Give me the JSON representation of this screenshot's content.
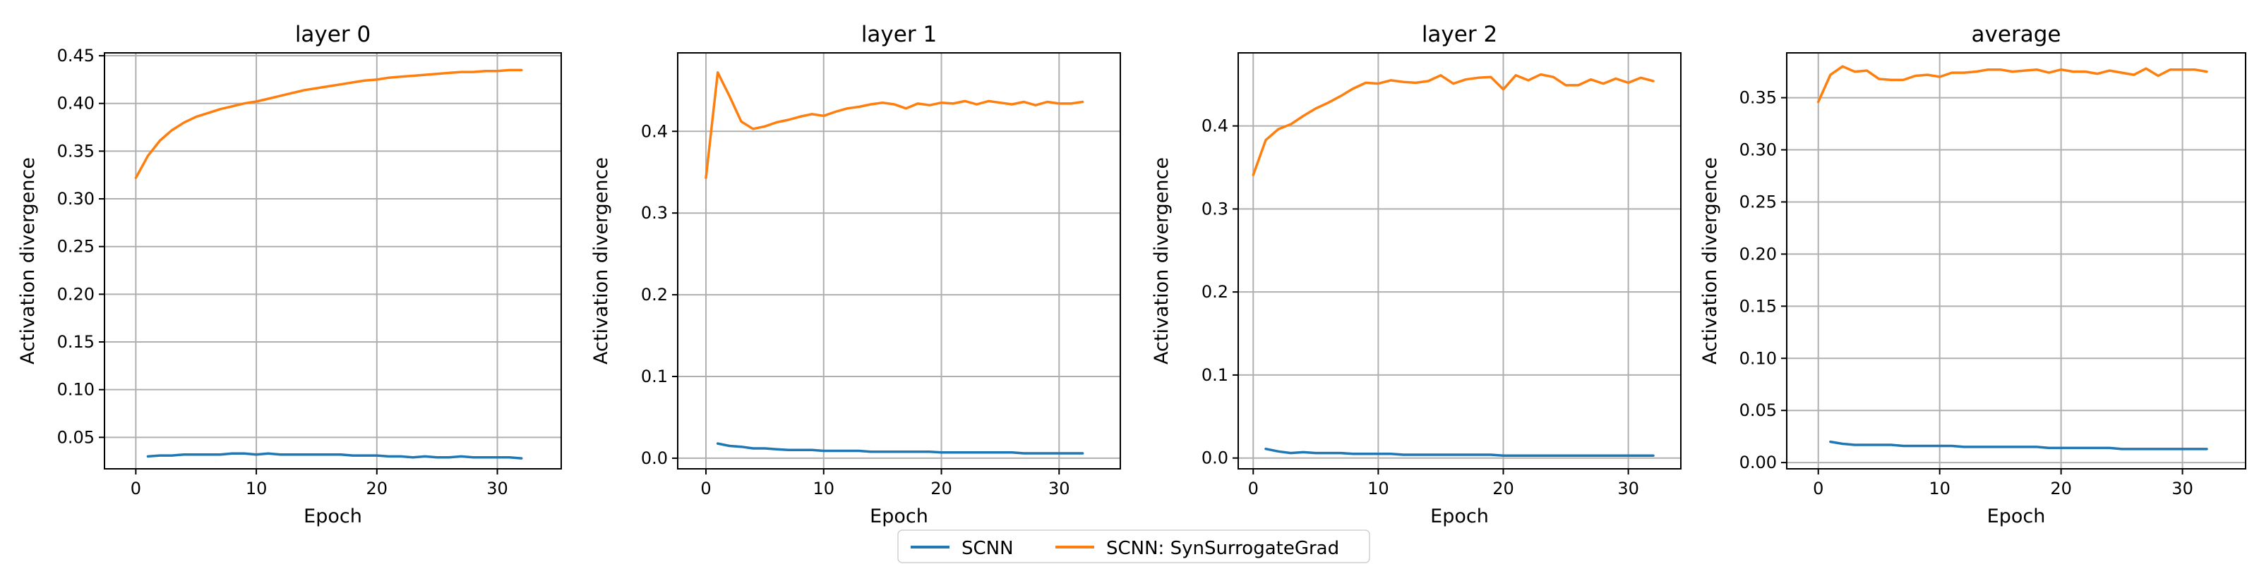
{
  "chart_data": [
    {
      "type": "line",
      "title": "layer 0",
      "xlabel": "Epoch",
      "ylabel": "Activation divergence",
      "xlim": [
        -2.6,
        35.3
      ],
      "ylim": [
        0.017,
        0.453
      ],
      "xticks": [
        0,
        10,
        20,
        30
      ],
      "yticks": [
        0.05,
        0.1,
        0.15,
        0.2,
        0.25,
        0.3,
        0.35,
        0.4,
        0.45
      ],
      "ytick_labels": [
        "0.05",
        "0.10",
        "0.15",
        "0.20",
        "0.25",
        "0.30",
        "0.35",
        "0.40",
        "0.45"
      ],
      "grid": true,
      "series": [
        {
          "name": "SCNN",
          "x": [
            1,
            2,
            3,
            4,
            5,
            6,
            7,
            8,
            9,
            10,
            11,
            12,
            13,
            14,
            15,
            16,
            17,
            18,
            19,
            20,
            21,
            22,
            23,
            24,
            25,
            26,
            27,
            28,
            29,
            30,
            31,
            32
          ],
          "y": [
            0.03,
            0.031,
            0.031,
            0.032,
            0.032,
            0.032,
            0.032,
            0.033,
            0.033,
            0.032,
            0.033,
            0.032,
            0.032,
            0.032,
            0.032,
            0.032,
            0.032,
            0.031,
            0.031,
            0.031,
            0.03,
            0.03,
            0.029,
            0.03,
            0.029,
            0.029,
            0.03,
            0.029,
            0.029,
            0.029,
            0.029,
            0.028
          ]
        },
        {
          "name": "SCNN: SynSurrogateGrad",
          "x": [
            0,
            1,
            2,
            3,
            4,
            5,
            6,
            7,
            8,
            9,
            10,
            11,
            12,
            13,
            14,
            15,
            16,
            17,
            18,
            19,
            20,
            21,
            22,
            23,
            24,
            25,
            26,
            27,
            28,
            29,
            30,
            31,
            32
          ],
          "y": [
            0.322,
            0.345,
            0.361,
            0.372,
            0.38,
            0.386,
            0.39,
            0.394,
            0.397,
            0.4,
            0.402,
            0.405,
            0.408,
            0.411,
            0.414,
            0.416,
            0.418,
            0.42,
            0.422,
            0.424,
            0.425,
            0.427,
            0.428,
            0.429,
            0.43,
            0.431,
            0.432,
            0.433,
            0.433,
            0.434,
            0.434,
            0.435,
            0.435
          ]
        }
      ]
    },
    {
      "type": "line",
      "title": "layer 1",
      "xlabel": "Epoch",
      "ylabel": "Activation divergence",
      "xlim": [
        -2.4,
        35.2
      ],
      "ylim": [
        -0.013,
        0.496
      ],
      "xticks": [
        0,
        10,
        20,
        30
      ],
      "yticks": [
        0.0,
        0.1,
        0.2,
        0.3,
        0.4
      ],
      "ytick_labels": [
        "0.0",
        "0.1",
        "0.2",
        "0.3",
        "0.4"
      ],
      "grid": true,
      "series": [
        {
          "name": "SCNN",
          "x": [
            1,
            2,
            3,
            4,
            5,
            6,
            7,
            8,
            9,
            10,
            11,
            12,
            13,
            14,
            15,
            16,
            17,
            18,
            19,
            20,
            21,
            22,
            23,
            24,
            25,
            26,
            27,
            28,
            29,
            30,
            31,
            32
          ],
          "y": [
            0.018,
            0.015,
            0.014,
            0.012,
            0.012,
            0.011,
            0.01,
            0.01,
            0.01,
            0.009,
            0.009,
            0.009,
            0.009,
            0.008,
            0.008,
            0.008,
            0.008,
            0.008,
            0.008,
            0.007,
            0.007,
            0.007,
            0.007,
            0.007,
            0.007,
            0.007,
            0.006,
            0.006,
            0.006,
            0.006,
            0.006,
            0.006
          ]
        },
        {
          "name": "SCNN: SynSurrogateGrad",
          "x": [
            0,
            1,
            2,
            3,
            4,
            5,
            6,
            7,
            8,
            9,
            10,
            11,
            12,
            13,
            14,
            15,
            16,
            17,
            18,
            19,
            20,
            21,
            22,
            23,
            24,
            25,
            26,
            27,
            28,
            29,
            30,
            31,
            32
          ],
          "y": [
            0.343,
            0.472,
            0.443,
            0.412,
            0.403,
            0.406,
            0.411,
            0.414,
            0.418,
            0.421,
            0.419,
            0.424,
            0.428,
            0.43,
            0.433,
            0.435,
            0.433,
            0.428,
            0.434,
            0.432,
            0.435,
            0.434,
            0.437,
            0.433,
            0.437,
            0.435,
            0.433,
            0.436,
            0.432,
            0.436,
            0.434,
            0.434,
            0.436
          ]
        }
      ]
    },
    {
      "type": "line",
      "title": "layer 2",
      "xlabel": "Epoch",
      "ylabel": "Activation divergence",
      "xlim": [
        -1.2,
        34.2
      ],
      "ylim": [
        -0.013,
        0.488
      ],
      "xticks": [
        0,
        10,
        20,
        30
      ],
      "yticks": [
        0.0,
        0.1,
        0.2,
        0.3,
        0.4
      ],
      "ytick_labels": [
        "0.0",
        "0.1",
        "0.2",
        "0.3",
        "0.4"
      ],
      "grid": true,
      "series": [
        {
          "name": "SCNN",
          "x": [
            1,
            2,
            3,
            4,
            5,
            6,
            7,
            8,
            9,
            10,
            11,
            12,
            13,
            14,
            15,
            16,
            17,
            18,
            19,
            20,
            21,
            22,
            23,
            24,
            25,
            26,
            27,
            28,
            29,
            30,
            31,
            32
          ],
          "y": [
            0.011,
            0.008,
            0.006,
            0.007,
            0.006,
            0.006,
            0.006,
            0.005,
            0.005,
            0.005,
            0.005,
            0.004,
            0.004,
            0.004,
            0.004,
            0.004,
            0.004,
            0.004,
            0.004,
            0.003,
            0.003,
            0.003,
            0.003,
            0.003,
            0.003,
            0.003,
            0.003,
            0.003,
            0.003,
            0.003,
            0.003,
            0.003
          ]
        },
        {
          "name": "SCNN: SynSurrogateGrad",
          "x": [
            0,
            1,
            2,
            3,
            4,
            5,
            6,
            7,
            8,
            9,
            10,
            11,
            12,
            13,
            14,
            15,
            16,
            17,
            18,
            19,
            20,
            21,
            22,
            23,
            24,
            25,
            26,
            27,
            28,
            29,
            30,
            31,
            32
          ],
          "y": [
            0.341,
            0.383,
            0.396,
            0.402,
            0.412,
            0.421,
            0.428,
            0.436,
            0.445,
            0.452,
            0.451,
            0.455,
            0.453,
            0.452,
            0.454,
            0.461,
            0.451,
            0.456,
            0.458,
            0.459,
            0.444,
            0.461,
            0.455,
            0.462,
            0.459,
            0.449,
            0.449,
            0.456,
            0.451,
            0.457,
            0.452,
            0.458,
            0.454
          ]
        }
      ]
    },
    {
      "type": "line",
      "title": "average",
      "xlabel": "Epoch",
      "ylabel": "Activation divergence",
      "xlim": [
        -2.6,
        35.2
      ],
      "ylim": [
        -0.006,
        0.393
      ],
      "xticks": [
        0,
        10,
        20,
        30
      ],
      "yticks": [
        0.0,
        0.05,
        0.1,
        0.15,
        0.2,
        0.25,
        0.3,
        0.35
      ],
      "ytick_labels": [
        "0.00",
        "0.05",
        "0.10",
        "0.15",
        "0.20",
        "0.25",
        "0.30",
        "0.35"
      ],
      "grid": true,
      "series": [
        {
          "name": "SCNN",
          "x": [
            1,
            2,
            3,
            4,
            5,
            6,
            7,
            8,
            9,
            10,
            11,
            12,
            13,
            14,
            15,
            16,
            17,
            18,
            19,
            20,
            21,
            22,
            23,
            24,
            25,
            26,
            27,
            28,
            29,
            30,
            31,
            32
          ],
          "y": [
            0.02,
            0.018,
            0.017,
            0.017,
            0.017,
            0.017,
            0.016,
            0.016,
            0.016,
            0.016,
            0.016,
            0.015,
            0.015,
            0.015,
            0.015,
            0.015,
            0.015,
            0.015,
            0.014,
            0.014,
            0.014,
            0.014,
            0.014,
            0.014,
            0.013,
            0.013,
            0.013,
            0.013,
            0.013,
            0.013,
            0.013,
            0.013
          ]
        },
        {
          "name": "SCNN: SynSurrogateGrad",
          "x": [
            0,
            1,
            2,
            3,
            4,
            5,
            6,
            7,
            8,
            9,
            10,
            11,
            12,
            13,
            14,
            15,
            16,
            17,
            18,
            19,
            20,
            21,
            22,
            23,
            24,
            25,
            26,
            27,
            28,
            29,
            30,
            31,
            32
          ],
          "y": [
            0.346,
            0.372,
            0.38,
            0.375,
            0.376,
            0.368,
            0.367,
            0.367,
            0.371,
            0.372,
            0.37,
            0.374,
            0.374,
            0.375,
            0.377,
            0.377,
            0.375,
            0.376,
            0.377,
            0.374,
            0.377,
            0.375,
            0.375,
            0.373,
            0.376,
            0.374,
            0.372,
            0.378,
            0.371,
            0.377,
            0.377,
            0.377,
            0.375
          ]
        }
      ]
    }
  ],
  "legend": {
    "placement": "bottom-center",
    "entries": [
      {
        "label": "SCNN",
        "color": "#1f77b4"
      },
      {
        "label": "SCNN: SynSurrogateGrad",
        "color": "#ff7f0e"
      }
    ]
  },
  "colors": {
    "scnn": "#1f77b4",
    "syn_surrogate_grad": "#ff7f0e",
    "grid": "#b0b0b0"
  }
}
